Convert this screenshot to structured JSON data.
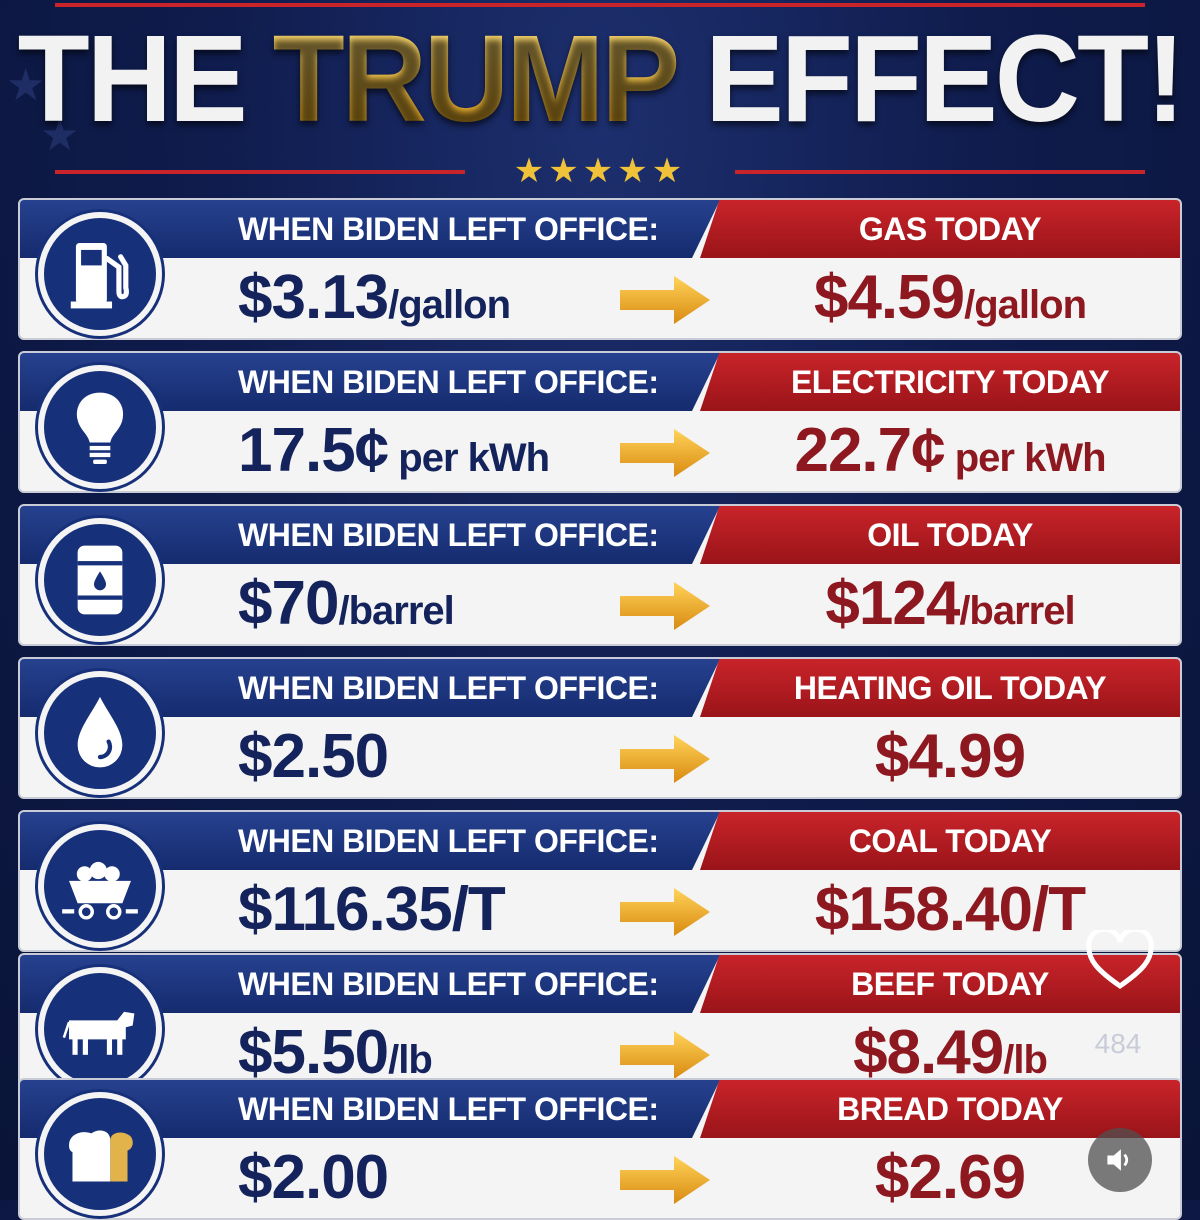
{
  "title": {
    "word1": "THE",
    "word2": "TRUMP",
    "word3": "EFFECT!"
  },
  "rows": [
    {
      "icon": "gas-pump-icon",
      "left_label": "WHEN BIDEN LEFT OFFICE:",
      "left_value": "$3.13",
      "left_unit": "/gallon",
      "right_label": "GAS TODAY",
      "right_value": "$4.59",
      "right_unit": "/gallon"
    },
    {
      "icon": "light-bulb-icon",
      "left_label": "WHEN BIDEN LEFT OFFICE:",
      "left_value": "17.5¢",
      "left_unit": " per kWh",
      "right_label": "ELECTRICITY TODAY",
      "right_value": "22.7¢",
      "right_unit": " per kWh"
    },
    {
      "icon": "oil-barrel-icon",
      "left_label": "WHEN BIDEN LEFT OFFICE:",
      "left_value": "$70",
      "left_unit": "/barrel",
      "right_label": "OIL TODAY",
      "right_value": "$124",
      "right_unit": "/barrel"
    },
    {
      "icon": "oil-drop-icon",
      "left_label": "WHEN BIDEN LEFT OFFICE:",
      "left_value": "$2.50",
      "left_unit": "",
      "right_label": "HEATING OIL TODAY",
      "right_value": "$4.99",
      "right_unit": ""
    },
    {
      "icon": "coal-cart-icon",
      "left_label": "WHEN BIDEN LEFT OFFICE:",
      "left_value": "$116.35/T",
      "left_unit": "",
      "right_label": "COAL TODAY",
      "right_value": "$158.40/T",
      "right_unit": ""
    },
    {
      "icon": "cow-icon",
      "left_label": "WHEN BIDEN LEFT OFFICE:",
      "left_value": "$5.50",
      "left_unit": "/lb",
      "right_label": "BEEF TODAY",
      "right_value": "$8.49",
      "right_unit": "/lb"
    },
    {
      "icon": "bread-icon",
      "left_label": "WHEN BIDEN LEFT OFFICE:",
      "left_value": "$2.00",
      "left_unit": "",
      "right_label": "BREAD TODAY",
      "right_value": "$2.69",
      "right_unit": ""
    }
  ],
  "overlay": {
    "like_count": "484"
  },
  "colors": {
    "navy": "#17307a",
    "red": "#c8242a",
    "gold": "#f0c23a",
    "value_red": "#8e1820",
    "value_navy": "#14235c"
  }
}
